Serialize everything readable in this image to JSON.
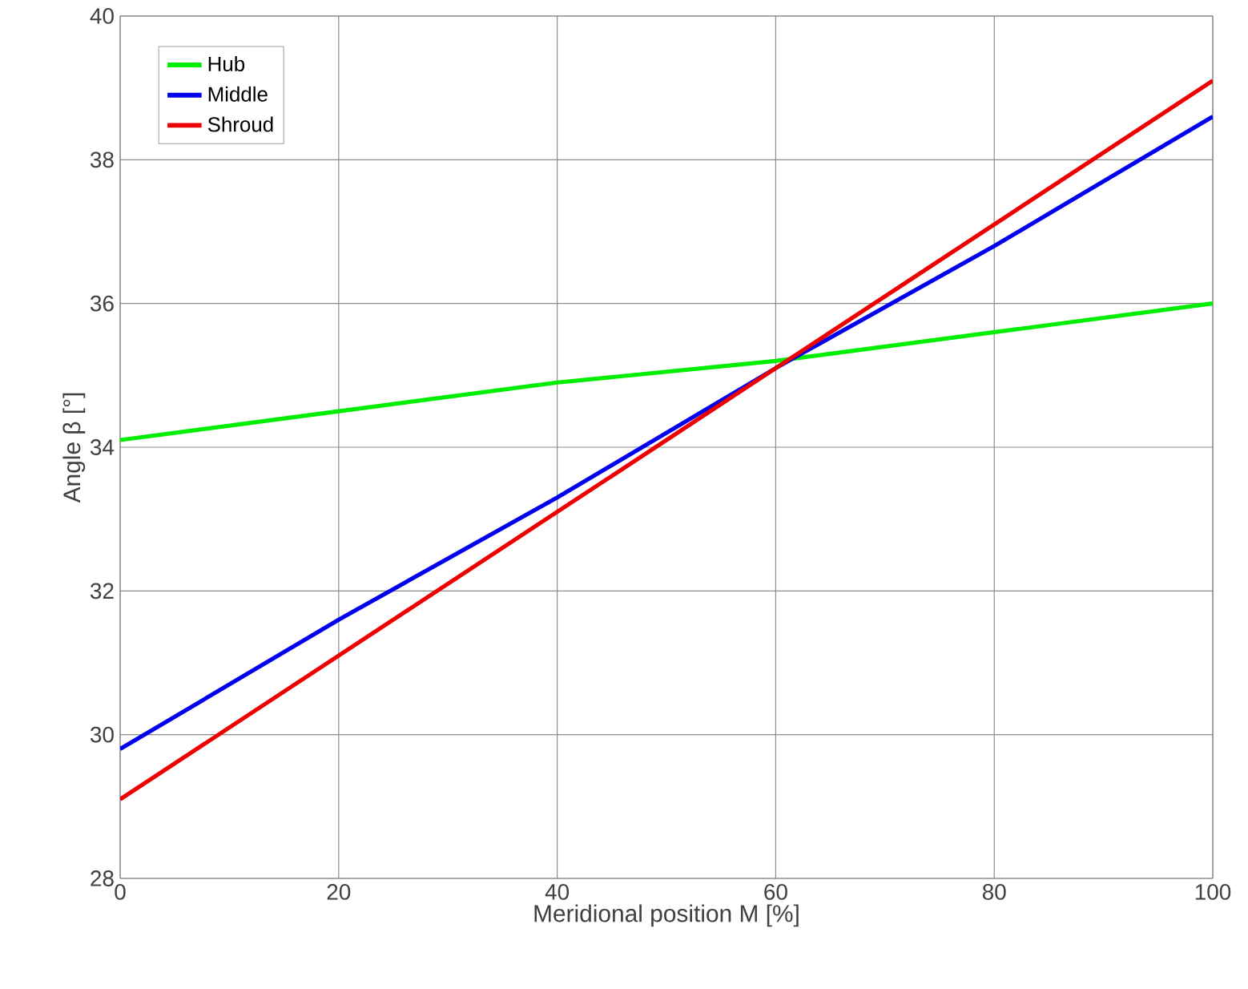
{
  "chart_data": {
    "type": "line",
    "xlabel": "Meridional position M [%]",
    "ylabel": "Angle  β  [°]",
    "xlim": [
      0,
      100
    ],
    "xticks": [
      0,
      20,
      40,
      60,
      80,
      100
    ],
    "ylim": [
      28,
      40
    ],
    "yticks": [
      28,
      30,
      32,
      34,
      36,
      38,
      40
    ],
    "x": [
      0,
      20,
      40,
      60,
      80,
      100
    ],
    "grid": true,
    "legend": "top left",
    "marker": "none",
    "line_style": "solid",
    "series": [
      {
        "name": "Hub",
        "color": "#00ee00",
        "values": [
          34.1,
          34.5,
          34.9,
          35.2,
          35.6,
          36.0
        ]
      },
      {
        "name": "Middle",
        "color": "#0000ee",
        "values": [
          29.8,
          31.6,
          33.3,
          35.1,
          36.8,
          38.6
        ]
      },
      {
        "name": "Shroud",
        "color": "#ee0000",
        "values": [
          29.1,
          31.1,
          33.1,
          35.1,
          37.1,
          39.1
        ]
      }
    ]
  }
}
